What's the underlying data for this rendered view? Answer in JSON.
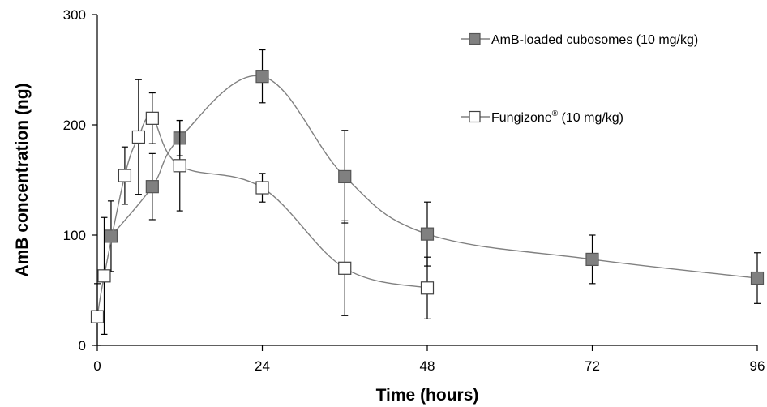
{
  "chart_data": {
    "type": "line",
    "title": "",
    "xlabel": "Time (hours)",
    "ylabel": "AmB concentration (ng)",
    "xlim": [
      0,
      96
    ],
    "ylim": [
      0,
      300
    ],
    "xticks": [
      0,
      24,
      48,
      72,
      96
    ],
    "yticks": [
      0,
      100,
      200,
      300
    ],
    "xtick_labels": [
      "0",
      "24",
      "48",
      "72",
      "96"
    ],
    "ytick_labels": [
      "0",
      "100",
      "200",
      "300"
    ],
    "grid": false,
    "legend_position": "top-right",
    "series": [
      {
        "name": "AmB-loaded cubosomes (10 mg/kg)",
        "marker": "filled-square",
        "color": "#808080",
        "line_color": "#808080",
        "x": [
          2,
          8,
          12,
          24,
          36,
          48,
          72,
          96
        ],
        "y": [
          99,
          144,
          188,
          244,
          153,
          101,
          78,
          61
        ],
        "err": [
          32,
          30,
          16,
          24,
          42,
          29,
          22,
          23
        ]
      },
      {
        "name_main": "Fungizone",
        "name_sup": "®",
        "name_rest": " (10 mg/kg)",
        "marker": "open-square",
        "color": "#ffffff",
        "line_color": "#808080",
        "x": [
          0,
          1,
          4,
          6,
          8,
          12,
          24,
          36,
          48
        ],
        "y": [
          26,
          63,
          154,
          189,
          206,
          163,
          143,
          70,
          52
        ],
        "err": [
          30,
          53,
          26,
          52,
          23,
          41,
          13,
          43,
          28
        ]
      }
    ]
  }
}
